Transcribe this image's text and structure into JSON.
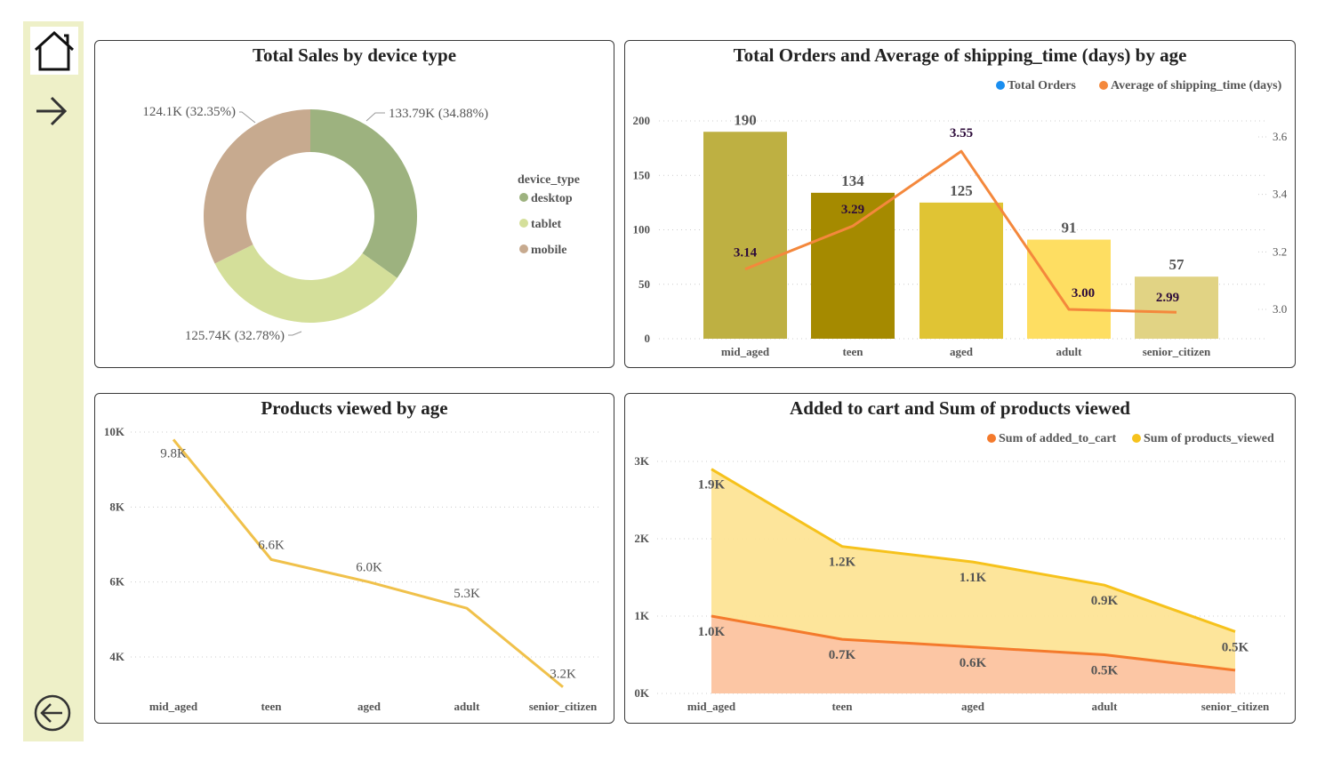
{
  "nav": {
    "home_icon": "home-icon",
    "forward_icon": "arrow-right-icon",
    "back_icon": "circle-arrow-left-icon"
  },
  "colors": {
    "sidebar": "#eef0c8",
    "desktop": "#9db27f",
    "tablet": "#d4df9a",
    "mobile": "#c7aa8f",
    "line": "#f4883c",
    "legend_orders": "#1a8ef0",
    "legend_shipping": "#f4883c",
    "views_line": "#f0c14b",
    "added_fill": "#fcc6a4",
    "added_line": "#f47a2c",
    "viewed_fill": "#fde496",
    "viewed_line": "#f6c21c"
  },
  "panels": {
    "donut_title": "Total Sales by device type",
    "combo_title": "Total Orders and Average of shipping_time (days) by age",
    "views_title": "Products viewed by age",
    "area_title": "Added to cart and Sum of products viewed"
  },
  "chart_data": [
    {
      "id": "sales_by_device",
      "type": "pie",
      "title": "Total Sales by device type",
      "legend_title": "device_type",
      "legend_position": "right",
      "slices": [
        {
          "label": "desktop",
          "value": 133.79,
          "display": "133.79K (34.88%)"
        },
        {
          "label": "tablet",
          "value": 125.74,
          "display": "125.74K (32.78%)"
        },
        {
          "label": "mobile",
          "value": 124.1,
          "display": "124.1K (32.35%)"
        }
      ]
    },
    {
      "id": "orders_shipping_by_age",
      "type": "bar",
      "title": "Total Orders and Average of shipping time (days) by age",
      "categories": [
        "mid_aged",
        "teen",
        "aged",
        "adult",
        "senior_citizen"
      ],
      "series": [
        {
          "name": "Total Orders",
          "type": "bar",
          "axis": "left",
          "values": [
            190,
            134,
            125,
            91,
            57
          ]
        },
        {
          "name": "Average of shipping_time (days)",
          "type": "line",
          "axis": "right",
          "values": [
            3.14,
            3.29,
            3.55,
            3.0,
            2.99
          ]
        }
      ],
      "bar_colors": [
        "#beb042",
        "#a58a00",
        "#e0c434",
        "#fede62",
        "#e1d384"
      ],
      "ylim_left": [
        0,
        200
      ],
      "yticks_left": [
        0,
        50,
        100,
        150,
        200
      ],
      "yticks_right": [
        "3.0",
        "3.2",
        "3.4",
        "3.6"
      ],
      "yticks_right_values": [
        3.0,
        3.2,
        3.4,
        3.6
      ],
      "bar_labels": [
        "190",
        "134",
        "125",
        "91",
        "57"
      ],
      "line_labels": [
        "3.14",
        "3.29",
        "3.55",
        "3.00",
        "2.99"
      ],
      "legend_position": "top-right"
    },
    {
      "id": "views_by_age",
      "type": "line",
      "title": "Products viewed by age",
      "categories": [
        "mid_aged",
        "teen",
        "aged",
        "adult",
        "senior_citizen"
      ],
      "values": [
        9800,
        6600,
        6000,
        5300,
        3200
      ],
      "point_labels": [
        "9.8K",
        "6.6K",
        "6.0K",
        "5.3K",
        "3.2K"
      ],
      "yticks": [
        "4K",
        "6K",
        "8K",
        "10K"
      ],
      "ytick_values": [
        4000,
        6000,
        8000,
        10000
      ]
    },
    {
      "id": "cart_and_views",
      "type": "area",
      "title": "Added to cart and Sum of products viewed",
      "categories": [
        "mid_aged",
        "teen",
        "aged",
        "adult",
        "senior_citizen"
      ],
      "stacked": true,
      "series": [
        {
          "name": "Sum of added_to_cart",
          "values": [
            1000,
            700,
            600,
            500,
            300
          ],
          "labels": [
            "1.0K",
            "0.7K",
            "0.6K",
            "0.5K",
            ""
          ]
        },
        {
          "name": "Sum of products_viewed",
          "values": [
            1900,
            1200,
            1100,
            900,
            500
          ],
          "labels": [
            "1.9K",
            "1.2K",
            "1.1K",
            "0.9K",
            "0.5K"
          ]
        }
      ],
      "yticks": [
        "0K",
        "1K",
        "2K",
        "3K"
      ],
      "ytick_values": [
        0,
        1000,
        2000,
        3000
      ],
      "legend_position": "top-right"
    }
  ]
}
